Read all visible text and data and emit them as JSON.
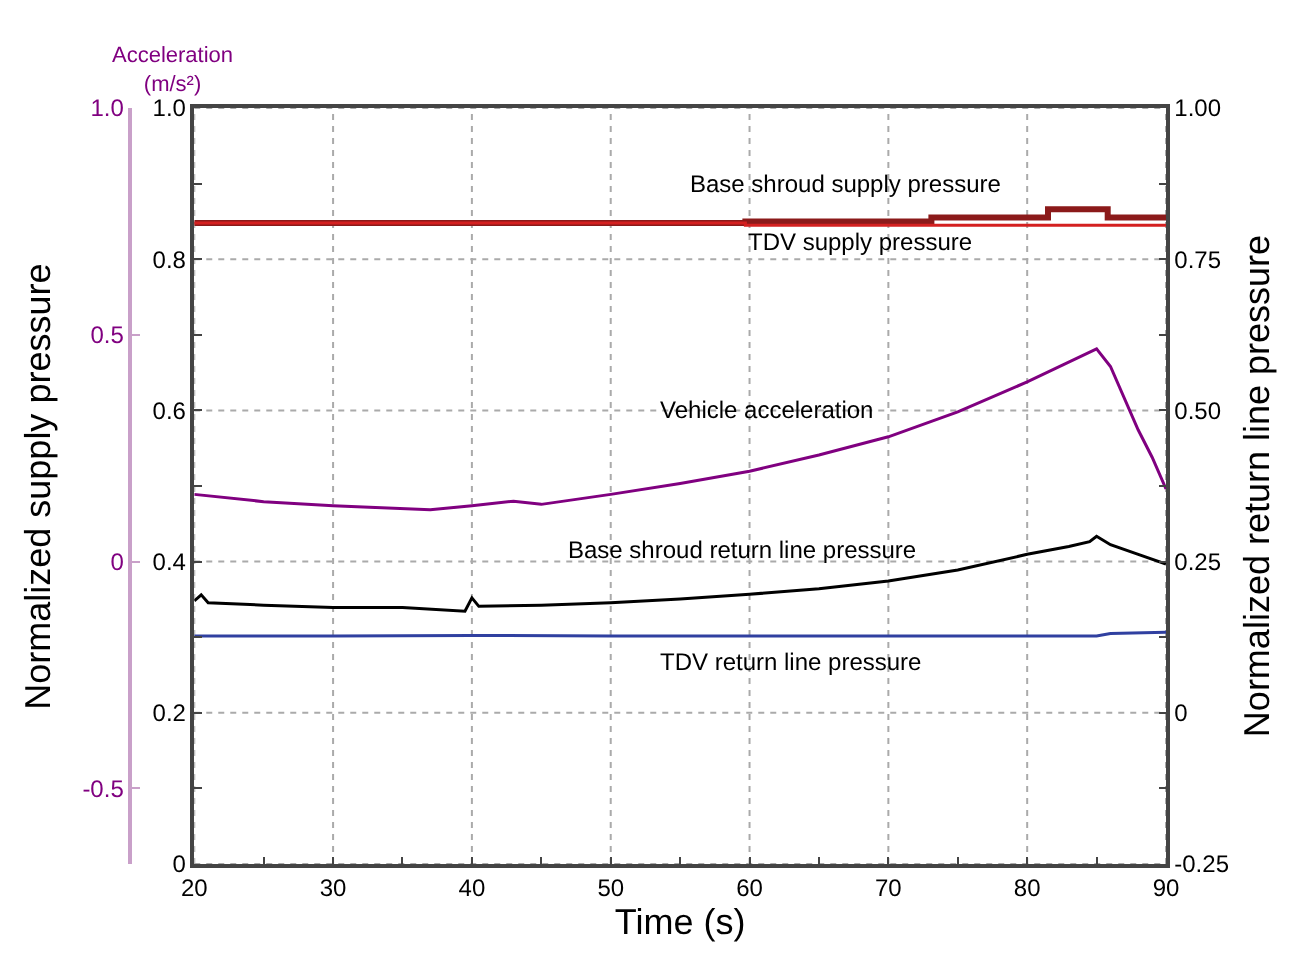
{
  "chart_data": {
    "type": "line",
    "xlabel": "Time (s)",
    "ylabel": "Normalized supply pressure",
    "y2label": "Normalized return line pressure",
    "y3label": "Acceleration (m/s²)",
    "xlim": [
      20,
      90
    ],
    "xticks": [
      20,
      {
        "value": 25,
        "label": null
      },
      30,
      {
        "value": 35,
        "label": null
      },
      40,
      {
        "value": 45,
        "label": null
      },
      50,
      {
        "value": 55,
        "label": null
      },
      60,
      {
        "value": 65,
        "label": null
      },
      70,
      {
        "value": 75,
        "label": null
      },
      80,
      {
        "value": 85,
        "label": null
      },
      90
    ],
    "ylim": [
      0,
      1.0
    ],
    "yticks": [
      0,
      {
        "value": 0.1,
        "label": null
      },
      0.2,
      {
        "value": 0.3,
        "label": null
      },
      0.4,
      {
        "value": 0.5,
        "label": null
      },
      0.6,
      {
        "value": 0.7,
        "label": null
      },
      0.8,
      {
        "value": 0.9,
        "label": null
      },
      {
        "value": 1.0,
        "label": "1.0"
      }
    ],
    "y2lim": [
      -0.25,
      1.0
    ],
    "y2ticks": [
      -0.25,
      {
        "value": -0.125,
        "label": null
      },
      {
        "value": 0,
        "label": "0"
      },
      {
        "value": 0.125,
        "label": null
      },
      0.25,
      {
        "value": 0.375,
        "label": null
      },
      {
        "value": 0.5,
        "label": "0.50"
      },
      {
        "value": 0.625,
        "label": null
      },
      0.75,
      {
        "value": 0.875,
        "label": null
      },
      {
        "value": 1.0,
        "label": "1.00"
      }
    ],
    "y3lim": [
      -0.667,
      1.0
    ],
    "y3ticks": [
      {
        "value": -0.5,
        "label": "-0.5"
      },
      0,
      0.5,
      {
        "value": 1.0,
        "label": "1.0"
      }
    ],
    "grid": true,
    "legend": false,
    "marker": "none",
    "line_style": "solid",
    "series": [
      {
        "name": "Base shroud supply pressure",
        "type": "step",
        "color": "#8b1a1a",
        "x": [
          20,
          59.7,
          73.1,
          81.5,
          85.8,
          90
        ],
        "values": [
          0.848,
          0.85,
          0.855,
          0.866,
          0.855,
          0.855
        ]
      },
      {
        "name": "TDV supply pressure",
        "type": "step",
        "color": "#d42020",
        "x": [
          20,
          59.7,
          70,
          90
        ],
        "values": [
          0.848,
          0.845,
          0.845,
          0.845
        ]
      },
      {
        "name": "Vehicle acceleration",
        "axis": "y3",
        "color": "#800080",
        "x": [
          20,
          25,
          30,
          37,
          40,
          43,
          45,
          50,
          55,
          60,
          65,
          70,
          75,
          80,
          85,
          86,
          88,
          89,
          90
        ],
        "values": [
          0.148,
          0.132,
          0.123,
          0.114,
          0.123,
          0.133,
          0.126,
          0.148,
          0.172,
          0.199,
          0.235,
          0.275,
          0.33,
          0.396,
          0.469,
          0.43,
          0.29,
          0.23,
          0.16
        ]
      },
      {
        "name": "Base shroud return line pressure",
        "axis": "y2",
        "color": "#000000",
        "x": [
          20,
          20.5,
          21,
          25,
          30,
          35,
          39.5,
          40,
          40.5,
          45,
          50,
          55,
          60,
          65,
          70,
          75,
          80,
          83,
          84.5,
          85,
          86,
          88,
          90
        ],
        "values": [
          0.185,
          0.195,
          0.182,
          0.178,
          0.174,
          0.174,
          0.168,
          0.19,
          0.176,
          0.178,
          0.182,
          0.188,
          0.196,
          0.205,
          0.218,
          0.236,
          0.262,
          0.275,
          0.283,
          0.292,
          0.278,
          0.262,
          0.246
        ]
      },
      {
        "name": "TDV return line pressure",
        "axis": "y2",
        "color": "#3040a0",
        "x": [
          20,
          30,
          40,
          50,
          60,
          70,
          80,
          85,
          86,
          90
        ],
        "values": [
          0.127,
          0.127,
          0.128,
          0.127,
          0.127,
          0.127,
          0.127,
          0.127,
          0.131,
          0.133
        ]
      }
    ]
  }
}
